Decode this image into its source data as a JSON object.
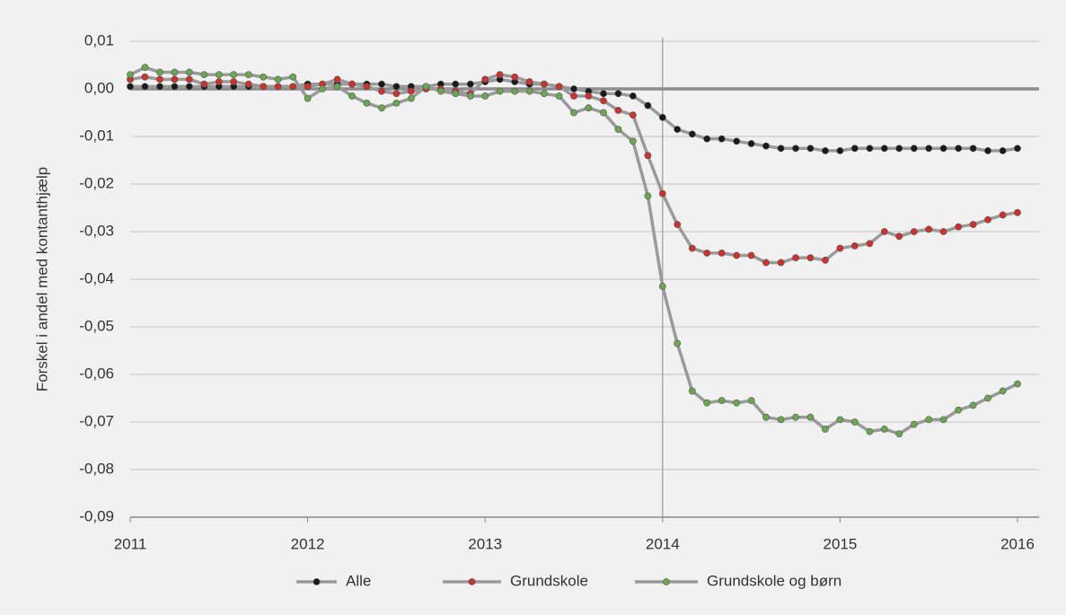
{
  "chart_data": {
    "type": "line",
    "y_label": "Forskel i andel med kontanthjælp",
    "x": [
      2011,
      2011.083,
      2011.167,
      2011.25,
      2011.333,
      2011.417,
      2011.5,
      2011.583,
      2011.667,
      2011.75,
      2011.833,
      2011.917,
      2012,
      2012.083,
      2012.167,
      2012.25,
      2012.333,
      2012.417,
      2012.5,
      2012.583,
      2012.667,
      2012.75,
      2012.833,
      2012.917,
      2013,
      2013.083,
      2013.167,
      2013.25,
      2013.333,
      2013.417,
      2013.5,
      2013.583,
      2013.667,
      2013.75,
      2013.833,
      2013.917,
      2014,
      2014.083,
      2014.167,
      2014.25,
      2014.333,
      2014.417,
      2014.5,
      2014.583,
      2014.667,
      2014.75,
      2014.833,
      2014.917,
      2015,
      2015.083,
      2015.167,
      2015.25,
      2015.333,
      2015.417,
      2015.5,
      2015.583,
      2015.667,
      2015.75,
      2015.833,
      2015.917,
      2016
    ],
    "series": [
      {
        "name": "Alle",
        "color": "#1a1a1a",
        "values": [
          0.0005,
          0.0005,
          0.0005,
          0.0005,
          0.0005,
          0.0005,
          0.0005,
          0.0005,
          0.0005,
          0.0005,
          0.0005,
          0.0005,
          0.001,
          0.001,
          0.001,
          0.001,
          0.001,
          0.001,
          0.0005,
          0.0005,
          0.0005,
          0.001,
          0.001,
          0.001,
          0.0015,
          0.002,
          0.0015,
          0.001,
          0.001,
          0.0005,
          0,
          -0.0005,
          -0.001,
          -0.001,
          -0.0015,
          -0.0035,
          -0.006,
          -0.0085,
          -0.0095,
          -0.0105,
          -0.0105,
          -0.011,
          -0.0115,
          -0.012,
          -0.0125,
          -0.0125,
          -0.0125,
          -0.013,
          -0.013,
          -0.0125,
          -0.0125,
          -0.0125,
          -0.0125,
          -0.0125,
          -0.0125,
          -0.0125,
          -0.0125,
          -0.0125,
          -0.013,
          -0.013,
          -0.0125
        ]
      },
      {
        "name": "Grundskole",
        "color": "#d0312d",
        "values": [
          0.002,
          0.0025,
          0.002,
          0.002,
          0.002,
          0.001,
          0.0015,
          0.0015,
          0.001,
          0.0005,
          0.0005,
          0.0005,
          0.0005,
          0.001,
          0.002,
          0.001,
          0.0005,
          -0.0005,
          -0.001,
          -0.0005,
          0,
          0,
          -0.0005,
          -0.001,
          0.002,
          0.003,
          0.0025,
          0.0015,
          0.001,
          0.0005,
          -0.0015,
          -0.0015,
          -0.0025,
          -0.0045,
          -0.0055,
          -0.014,
          -0.022,
          -0.0285,
          -0.0335,
          -0.0345,
          -0.0345,
          -0.035,
          -0.035,
          -0.0365,
          -0.0365,
          -0.0355,
          -0.0355,
          -0.036,
          -0.0335,
          -0.033,
          -0.0325,
          -0.03,
          -0.031,
          -0.03,
          -0.0295,
          -0.03,
          -0.029,
          -0.0285,
          -0.0275,
          -0.0265,
          -0.026
        ]
      },
      {
        "name": "Grundskole og børn",
        "color": "#6aa84f",
        "values": [
          0.003,
          0.0045,
          0.0035,
          0.0035,
          0.0035,
          0.003,
          0.003,
          0.003,
          0.003,
          0.0025,
          0.002,
          0.0025,
          -0.002,
          0,
          0.0005,
          -0.0015,
          -0.003,
          -0.004,
          -0.003,
          -0.002,
          0.0005,
          -0.0005,
          -0.001,
          -0.0015,
          -0.0015,
          -0.0005,
          -0.0005,
          -0.0005,
          -0.001,
          -0.0015,
          -0.005,
          -0.004,
          -0.005,
          -0.0085,
          -0.011,
          -0.0225,
          -0.0415,
          -0.0535,
          -0.0635,
          -0.066,
          -0.0655,
          -0.066,
          -0.0655,
          -0.069,
          -0.0695,
          -0.069,
          -0.069,
          -0.0715,
          -0.0695,
          -0.07,
          -0.072,
          -0.0715,
          -0.0725,
          -0.0705,
          -0.0695,
          -0.0695,
          -0.0675,
          -0.0665,
          -0.065,
          -0.0635,
          -0.062
        ]
      }
    ],
    "line_color": "#9a9a9a",
    "xlim": [
      2011,
      2016
    ],
    "xticks": [
      2011,
      2012,
      2013,
      2014,
      2015,
      2016
    ],
    "ylim": [
      -0.09,
      0.01
    ],
    "yticks": [
      {
        "value": 0.01,
        "label": "0,01"
      },
      {
        "value": 0,
        "label": "0,00"
      },
      {
        "value": -0.01,
        "label": "-0,01"
      },
      {
        "value": -0.02,
        "label": "-0,02"
      },
      {
        "value": -0.03,
        "label": "-0,03"
      },
      {
        "value": -0.04,
        "label": "-0,04"
      },
      {
        "value": -0.05,
        "label": "-0,05"
      },
      {
        "value": -0.06,
        "label": "-0,06"
      },
      {
        "value": -0.07,
        "label": "-0,07"
      },
      {
        "value": -0.08,
        "label": "-0,08"
      },
      {
        "value": -0.09,
        "label": "-0,09"
      }
    ],
    "grid": true,
    "hline": 0,
    "vline": 2014,
    "legend": "bottom"
  }
}
